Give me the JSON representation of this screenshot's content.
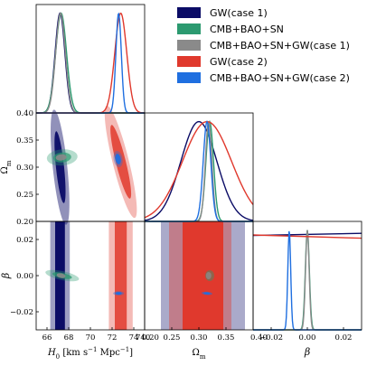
{
  "chart_data": {
    "type": "corner",
    "legend": [
      {
        "name": "GW(case 1)",
        "color": "#0b0c66"
      },
      {
        "name": "CMB+BAO+SN",
        "color": "#2c9a70"
      },
      {
        "name": "CMB+BAO+SN+GW(case 1)",
        "color": "#8a8a8a"
      },
      {
        "name": "GW(case 2)",
        "color": "#e0392d"
      },
      {
        "name": "CMB+BAO+SN+GW(case 2)",
        "color": "#1f6fe0"
      }
    ],
    "parameters": [
      {
        "key": "H0",
        "xlabel": "H_0 [km s^-1 Mpc^-1]",
        "range": [
          65,
          75
        ],
        "ticks": [
          "66",
          "68",
          "70",
          "72",
          "74"
        ],
        "tick_values": [
          66,
          68,
          70,
          72,
          74
        ]
      },
      {
        "key": "Om",
        "xlabel": "Ω_m",
        "ylabel": "Ω_m",
        "range": [
          0.2,
          0.4
        ],
        "ticks": [
          "0.20",
          "0.25",
          "0.30",
          "0.35",
          "0.40"
        ],
        "tick_values": [
          0.2,
          0.25,
          0.3,
          0.35,
          0.4
        ],
        "yticks": [
          "0.20",
          "0.25",
          "0.30",
          "0.35",
          "0.40"
        ]
      },
      {
        "key": "beta",
        "xlabel": "β",
        "ylabel": "β",
        "range": [
          -0.03,
          0.03
        ],
        "ticks": [
          "−0.02",
          "0.00",
          "0.02"
        ],
        "tick_values": [
          -0.02,
          0.0,
          0.02
        ],
        "yticks": [
          "−0.02",
          "0.00",
          "0.02"
        ]
      }
    ],
    "tick_labels_text": {
      "h0_x": [
        "66",
        "68",
        "70",
        "72",
        "74"
      ],
      "om_x": [
        "0.25",
        "0.30",
        "0.35",
        "0.40"
      ],
      "beta_x": [
        "−0.02",
        "0.00",
        "0.02"
      ],
      "om_y": [
        "0.20",
        "0.25",
        "0.30",
        "0.35",
        "0.40"
      ],
      "beta_y": [
        "−0.02",
        "0.00",
        "0.02"
      ],
      "om_x_left": "0.20",
      "beta_x_left": "0.40",
      "h0_x_right": "740"
    },
    "marginals": {
      "H0": [
        {
          "series": "GW(case 1)",
          "mean": 67.2,
          "sigma": 0.45
        },
        {
          "series": "CMB+BAO+SN",
          "mean": 67.3,
          "sigma": 0.5
        },
        {
          "series": "CMB+BAO+SN+GW(case 1)",
          "mean": 67.25,
          "sigma": 0.45
        },
        {
          "series": "GW(case 2)",
          "mean": 72.8,
          "sigma": 0.55
        },
        {
          "series": "CMB+BAO+SN+GW(case 2)",
          "mean": 72.6,
          "sigma": 0.25
        }
      ],
      "Om": [
        {
          "series": "GW(case 1)",
          "mean": 0.3,
          "sigma": 0.033
        },
        {
          "series": "CMB+BAO+SN",
          "mean": 0.32,
          "sigma": 0.007
        },
        {
          "series": "CMB+BAO+SN+GW(case 1)",
          "mean": 0.318,
          "sigma": 0.006
        },
        {
          "series": "GW(case 2)",
          "mean": 0.315,
          "sigma": 0.045
        },
        {
          "series": "CMB+BAO+SN+GW(case 2)",
          "mean": 0.315,
          "sigma": 0.007
        }
      ],
      "beta": [
        {
          "series": "GW(case 1)",
          "flat_level": 0.88,
          "slope": -0.02
        },
        {
          "series": "CMB+BAO+SN",
          "mean": 0.0,
          "sigma": 0.0011
        },
        {
          "series": "CMB+BAO+SN+GW(case 1)",
          "mean": 0.0,
          "sigma": 0.001
        },
        {
          "series": "GW(case 2)",
          "flat_level": 0.86,
          "slope": 0.03
        },
        {
          "series": "CMB+BAO+SN+GW(case 2)",
          "mean": -0.01,
          "sigma": 0.0008
        }
      ]
    }
  }
}
